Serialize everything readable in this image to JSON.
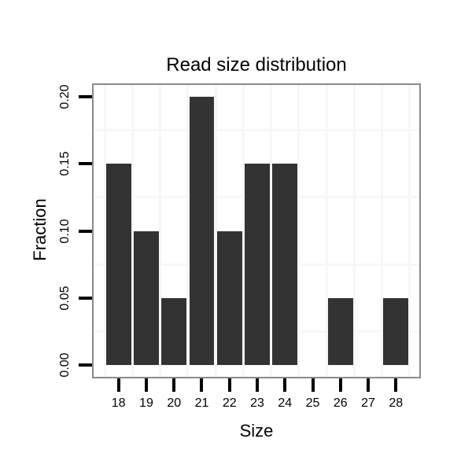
{
  "chart_data": {
    "type": "bar",
    "title": "Read size distribution",
    "xlabel": "Size",
    "ylabel": "Fraction",
    "categories": [
      "18",
      "19",
      "20",
      "21",
      "22",
      "23",
      "24",
      "25",
      "26",
      "27",
      "28"
    ],
    "values": [
      0.15,
      0.1,
      0.05,
      0.2,
      0.1,
      0.15,
      0.15,
      0,
      0.05,
      0,
      0.05
    ],
    "y_tick_values": [
      0.0,
      0.05,
      0.1,
      0.15,
      0.2
    ],
    "y_tick_labels": [
      "0.00",
      "0.05",
      "0.10",
      "0.15",
      "0.20"
    ],
    "minor_grid_y_values": [
      0.025,
      0.075,
      0.125,
      0.175
    ],
    "ylim": [
      -0.01,
      0.21
    ],
    "grid": "minor-only",
    "legend_position": "none",
    "bar_color": "#333333",
    "panel_border_color": "#8a8a8a",
    "grid_color": "#f7f7f7",
    "tick_color": "#000000",
    "text_color": "#000000",
    "background_color": "#ffffff"
  }
}
